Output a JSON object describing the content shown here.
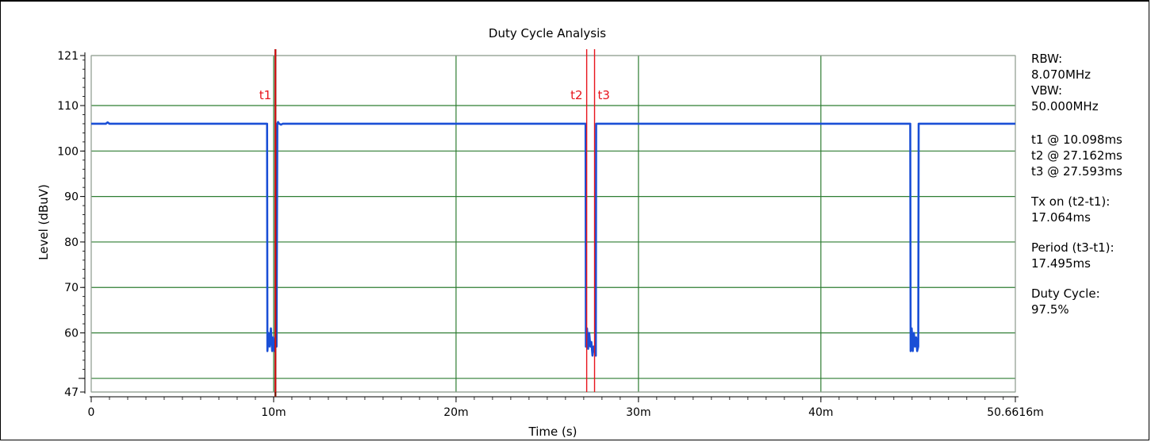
{
  "chart_data": {
    "type": "line",
    "title": "Duty Cycle Analysis",
    "xlabel": "Time (s)",
    "ylabel": "Level (dBuV)",
    "xlim": [
      0,
      0.0506616
    ],
    "ylim": [
      47,
      121
    ],
    "x_tick_labels": [
      {
        "value": 0,
        "label": "0"
      },
      {
        "value": 0.01,
        "label": "10m"
      },
      {
        "value": 0.02,
        "label": "20m"
      },
      {
        "value": 0.03,
        "label": "30m"
      },
      {
        "value": 0.04,
        "label": "40m"
      },
      {
        "value": 0.0506616,
        "label": "50.6616m"
      }
    ],
    "y_tick_labels": [
      {
        "value": 121,
        "label": "121"
      },
      {
        "value": 110,
        "label": "110"
      },
      {
        "value": 100,
        "label": "100"
      },
      {
        "value": 90,
        "label": "90"
      },
      {
        "value": 80,
        "label": "80"
      },
      {
        "value": 70,
        "label": "70"
      },
      {
        "value": 60,
        "label": "60"
      },
      {
        "value": 47,
        "label": "47"
      }
    ],
    "grid": true,
    "series": [
      {
        "color": "#1a4fd6",
        "x": [
          0,
          0.0001,
          0.0008,
          0.0009,
          0.001,
          0.00964,
          0.00966,
          0.00972,
          0.00978,
          0.00985,
          0.00992,
          0.00998,
          0.01004,
          0.0101,
          0.01016,
          0.0102,
          0.01024,
          0.0103,
          0.0104,
          0.0105,
          0.0271,
          0.02712,
          0.02718,
          0.02724,
          0.0273,
          0.02736,
          0.02742,
          0.02748,
          0.02754,
          0.0276,
          0.02766,
          0.02768,
          0.0277,
          0.0449,
          0.04492,
          0.04498,
          0.04504,
          0.0451,
          0.04516,
          0.04522,
          0.04528,
          0.04534,
          0.04536,
          0.0454,
          0.0506616
        ],
        "y": [
          106,
          106,
          106,
          106.3,
          106,
          106,
          56,
          60,
          57,
          61,
          56,
          59,
          56,
          58,
          57,
          106,
          106.4,
          106,
          105.8,
          106,
          106,
          57,
          61,
          56.5,
          60,
          57,
          58,
          55,
          57,
          56,
          55,
          106,
          106,
          106,
          56,
          61,
          56,
          60,
          57,
          59,
          56,
          57,
          106,
          106,
          106
        ]
      }
    ],
    "markers": [
      {
        "name": "t1",
        "x": 0.010098,
        "color": "#e8141c"
      },
      {
        "name": "t2",
        "x": 0.027162,
        "color": "#e8141c"
      },
      {
        "name": "t3",
        "x": 0.027593,
        "color": "#e8141c"
      }
    ],
    "cursor": {
      "x": 0.010098,
      "color": "#7a1c0c"
    }
  },
  "side_panel": {
    "rbw_label": "RBW:",
    "rbw_value": "8.070MHz",
    "vbw_label": "VBW:",
    "vbw_value": "50.000MHz",
    "t1_text": "t1 @ 10.098ms",
    "t2_text": "t2 @ 27.162ms",
    "t3_text": "t3 @ 27.593ms",
    "txon_label": "Tx on (t2-t1):",
    "txon_value": "17.064ms",
    "period_label": "Period (t3-t1):",
    "period_value": "17.495ms",
    "duty_label": "Duty Cycle:",
    "duty_value": "97.5%"
  },
  "colors": {
    "grid": "#2e7d32",
    "plot_bg": "#ffffff"
  }
}
